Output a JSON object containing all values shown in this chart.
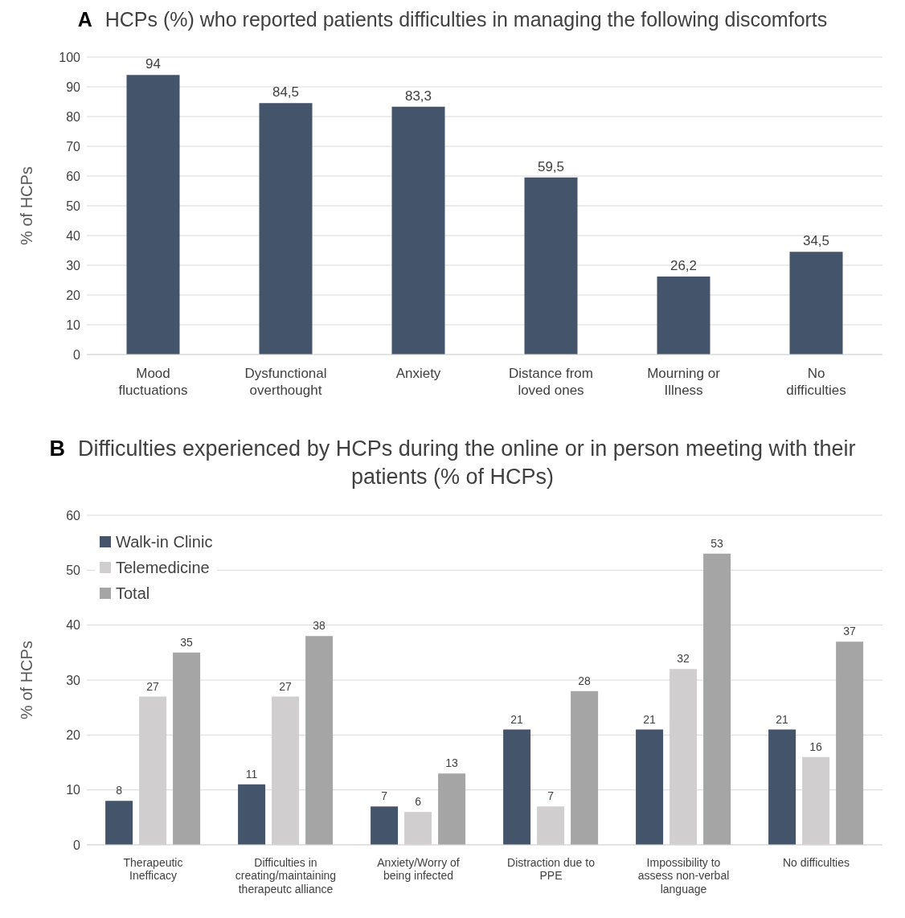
{
  "chart_data": [
    {
      "type": "bar",
      "title": "HCPs (%) who reported patients difficulties in managing the following discomforts",
      "annotations": [
        "A"
      ],
      "ylabel": "% of HCPs",
      "categories": [
        "Mood fluctuations",
        "Dysfunctional overthought",
        "Anxiety",
        "Distance from loved ones",
        "Mourning or Illness",
        "No difficulties"
      ],
      "values": [
        94,
        84.5,
        83.3,
        59.5,
        26.2,
        34.5
      ],
      "color": "#44546a",
      "value_labels": [
        "94",
        "84,5",
        "83,3",
        "59,5",
        "26,2",
        "34,5"
      ],
      "ylim": [
        0,
        100
      ],
      "yticks": [
        0,
        10,
        20,
        30,
        40,
        50,
        60,
        70,
        80,
        90,
        100
      ],
      "grid": "y"
    },
    {
      "type": "bar",
      "title": "Difficulties experienced by HCPs during the online or in person meeting with their patients (% of HCPs)",
      "annotations": [
        "B"
      ],
      "ylabel": "% of HCPs",
      "categories": [
        "Therapeutic Inefficacy",
        "Difficulties in creating/maintaining therapeutc alliance",
        "Anxiety/Worry of being infected",
        "Distraction due to PPE",
        "Impossibility to assess non-verbal language",
        "No difficulties"
      ],
      "series": [
        {
          "name": "Walk-in Clinic",
          "color": "#44546a",
          "values": [
            8,
            11,
            7,
            21,
            21,
            21
          ]
        },
        {
          "name": "Telemedicine",
          "color": "#d0cece",
          "values": [
            27,
            27,
            6,
            7,
            32,
            16
          ]
        },
        {
          "name": "Total",
          "color": "#a5a5a5",
          "values": [
            35,
            38,
            13,
            28,
            53,
            37
          ]
        }
      ],
      "data_labels": true,
      "legend": "top left",
      "ylim": [
        0,
        60
      ],
      "yticks": [
        0,
        10,
        20,
        30,
        40,
        50,
        60
      ],
      "grid": "y"
    }
  ]
}
